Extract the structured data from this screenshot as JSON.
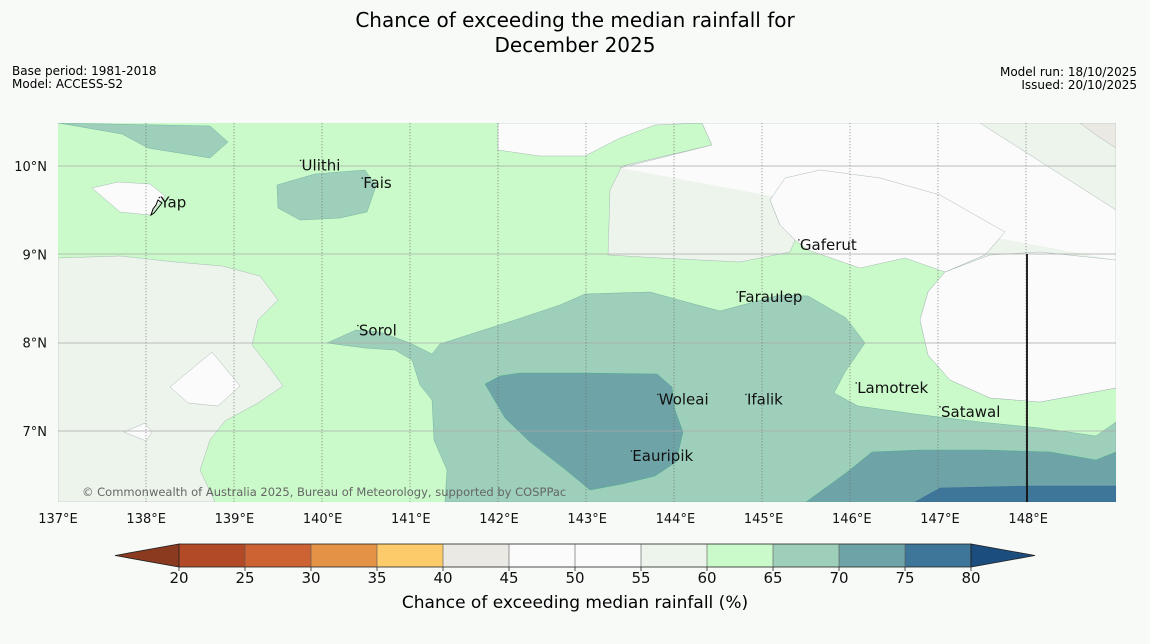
{
  "title": {
    "line1": "Chance of exceeding the median rainfall for",
    "line2": "December 2025"
  },
  "meta_left": {
    "base_period": "Base period: 1981-2018",
    "model": "Model: ACCESS-S2"
  },
  "meta_right": {
    "model_run": "Model run: 18/10/2025",
    "issued": "Issued: 20/10/2025"
  },
  "map": {
    "lat_labels": [
      "10°N",
      "9°N",
      "8°N",
      "7°N"
    ],
    "lon_labels": [
      "137°E",
      "138°E",
      "139°E",
      "140°E",
      "141°E",
      "142°E",
      "143°E",
      "144°E",
      "145°E",
      "146°E",
      "147°E",
      "148°E"
    ],
    "places": [
      {
        "name": "Ulithi",
        "lon": 139.75,
        "lat": 9.95
      },
      {
        "name": "Fais",
        "lon": 140.45,
        "lat": 9.75
      },
      {
        "name": "Yap",
        "lon": 138.15,
        "lat": 9.53
      },
      {
        "name": "Gaferut",
        "lon": 145.4,
        "lat": 9.05
      },
      {
        "name": "Faraulep",
        "lon": 144.7,
        "lat": 8.46
      },
      {
        "name": "Sorol",
        "lon": 140.4,
        "lat": 8.08
      },
      {
        "name": "Lamotrek",
        "lon": 146.05,
        "lat": 7.43
      },
      {
        "name": "Woleai",
        "lon": 143.8,
        "lat": 7.3
      },
      {
        "name": "Ifalik",
        "lon": 144.8,
        "lat": 7.3
      },
      {
        "name": "Satawal",
        "lon": 147.0,
        "lat": 7.16
      },
      {
        "name": "Eauripik",
        "lon": 143.5,
        "lat": 6.66
      }
    ],
    "copyright": "© Commonwealth of Australia 2025, Bureau of Meteorology, supported by COSPPac"
  },
  "colorbar": {
    "ticks": [
      "20",
      "25",
      "30",
      "35",
      "40",
      "45",
      "50",
      "55",
      "60",
      "65",
      "70",
      "75",
      "80"
    ],
    "colors": [
      "#8b3a1f",
      "#b34a27",
      "#cd6233",
      "#e39246",
      "#fdcb6a",
      "#ebe9e4",
      "#fafbfa",
      "#fafbfa",
      "#ecf4ec",
      "#caf9ca",
      "#9dcfba",
      "#6ea4a7",
      "#3e7699",
      "#1b4d7e"
    ],
    "label": "Chance of exceeding median rainfall (%)"
  }
}
